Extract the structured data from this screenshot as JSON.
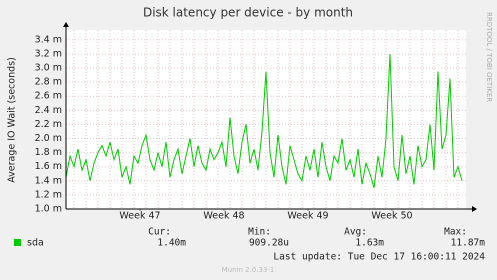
{
  "chart_data": {
    "type": "line",
    "title": "Disk latency per device - by month",
    "y_label": "Average IO Wait (seconds)",
    "ylim": [
      0.001,
      0.00354
    ],
    "yticks": [
      {
        "value": 0.001,
        "label": "1.0 m"
      },
      {
        "value": 0.0012,
        "label": "1.2 m"
      },
      {
        "value": 0.0014,
        "label": "1.4 m"
      },
      {
        "value": 0.0016,
        "label": "1.6 m"
      },
      {
        "value": 0.0018,
        "label": "1.8 m"
      },
      {
        "value": 0.002,
        "label": "2.0 m"
      },
      {
        "value": 0.0022,
        "label": "2.2 m"
      },
      {
        "value": 0.0024,
        "label": "2.4 m"
      },
      {
        "value": 0.0026,
        "label": "2.6 m"
      },
      {
        "value": 0.0028,
        "label": "2.8 m"
      },
      {
        "value": 0.003,
        "label": "3.0 m"
      },
      {
        "value": 0.0032,
        "label": "3.2 m"
      },
      {
        "value": 0.0034,
        "label": "3.4 m"
      }
    ],
    "xlim": [
      0,
      100
    ],
    "xticks": [
      {
        "value": 18.5,
        "label": "Week 47"
      },
      {
        "value": 39.5,
        "label": "Week 48"
      },
      {
        "value": 60.5,
        "label": "Week 49"
      },
      {
        "value": 81.5,
        "label": "Week 50"
      }
    ],
    "xgrid_step": 3,
    "grid": true,
    "series": [
      {
        "name": "sda",
        "color": "#00cc00",
        "values": [
          0.00145,
          0.00175,
          0.0016,
          0.00185,
          0.00155,
          0.0017,
          0.0014,
          0.00165,
          0.0018,
          0.0019,
          0.00175,
          0.00195,
          0.0017,
          0.00185,
          0.00145,
          0.0016,
          0.00135,
          0.00175,
          0.00165,
          0.0019,
          0.00205,
          0.0017,
          0.00155,
          0.0018,
          0.0016,
          0.00195,
          0.00145,
          0.0017,
          0.00185,
          0.0015,
          0.00175,
          0.002,
          0.0016,
          0.0019,
          0.00165,
          0.00155,
          0.00185,
          0.0017,
          0.0018,
          0.00195,
          0.0016,
          0.0023,
          0.00175,
          0.0015,
          0.00195,
          0.0022,
          0.00165,
          0.00185,
          0.00155,
          0.0021,
          0.00295,
          0.0018,
          0.00145,
          0.00205,
          0.0016,
          0.00135,
          0.0019,
          0.0017,
          0.0015,
          0.0014,
          0.00175,
          0.00155,
          0.00185,
          0.00145,
          0.00195,
          0.0016,
          0.0014,
          0.00175,
          0.00165,
          0.002,
          0.00155,
          0.0017,
          0.00145,
          0.00185,
          0.00135,
          0.00165,
          0.0015,
          0.0013,
          0.00175,
          0.00145,
          0.002,
          0.0032,
          0.0016,
          0.0014,
          0.00205,
          0.0015,
          0.00175,
          0.00135,
          0.0019,
          0.0016,
          0.0017,
          0.0022,
          0.00155,
          0.00295,
          0.00185,
          0.00205,
          0.00285,
          0.00145,
          0.0016,
          0.0014
        ]
      }
    ],
    "stats": [
      {
        "label": "Cur:",
        "value": 0.0014,
        "value_label": "1.40m"
      },
      {
        "label": "Min:",
        "value": 0.00090928,
        "value_label": "909.28u"
      },
      {
        "label": "Avg:",
        "value": 0.00163,
        "value_label": "1.63m"
      },
      {
        "label": "Max:",
        "value": 0.01187,
        "value_label": "11.87m"
      }
    ],
    "last_update": "Last update:  Tue Dec 17 16:00:11 2024",
    "footer": "Munin 2.0.33-1",
    "side_text": "RRDTOOL / TOBI OETIKER"
  }
}
